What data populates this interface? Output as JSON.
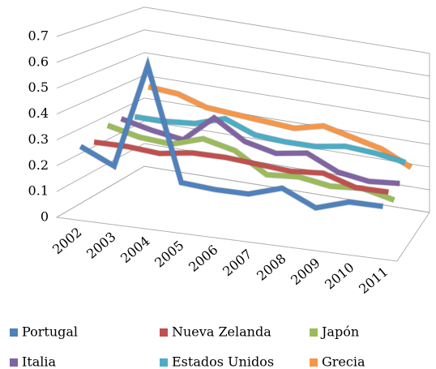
{
  "chart_data": {
    "type": "line3d",
    "categories": [
      "2002",
      "2003",
      "2004",
      "2005",
      "2006",
      "2007",
      "2008",
      "2009",
      "2010",
      "2011"
    ],
    "ylim": [
      0,
      0.7
    ],
    "yticks": [
      0,
      0.1,
      0.2,
      0.3,
      0.4,
      0.5,
      0.6,
      0.7
    ],
    "grid": true,
    "legend": "bottom",
    "series": [
      {
        "name": "Portugal",
        "color": "#4f81bd",
        "values": [
          0.27,
          0.21,
          0.62,
          0.18,
          0.17,
          0.17,
          0.21,
          0.15,
          0.19,
          0.19
        ]
      },
      {
        "name": "Nueva Zelanda",
        "color": "#c0504d",
        "values": [
          0.26,
          0.26,
          0.25,
          0.27,
          0.27,
          0.26,
          0.25,
          0.26,
          0.22,
          0.22
        ]
      },
      {
        "name": "Japón",
        "color": "#9bbb59",
        "values": [
          0.3,
          0.27,
          0.26,
          0.3,
          0.27,
          0.19,
          0.2,
          0.18,
          0.19,
          0.16
        ]
      },
      {
        "name": "Italia",
        "color": "#8064a2",
        "values": [
          0.3,
          0.27,
          0.25,
          0.36,
          0.28,
          0.25,
          0.27,
          0.21,
          0.19,
          0.2
        ]
      },
      {
        "name": "Estados Unidos",
        "color": "#4bacc6",
        "values": [
          0.28,
          0.28,
          0.29,
          0.33,
          0.28,
          0.27,
          0.27,
          0.29,
          0.28,
          0.26
        ]
      },
      {
        "name": "Grecia",
        "color": "#f79646",
        "values": [
          0.38,
          0.37,
          0.33,
          0.32,
          0.31,
          0.3,
          0.33,
          0.3,
          0.27,
          0.21
        ]
      }
    ]
  }
}
